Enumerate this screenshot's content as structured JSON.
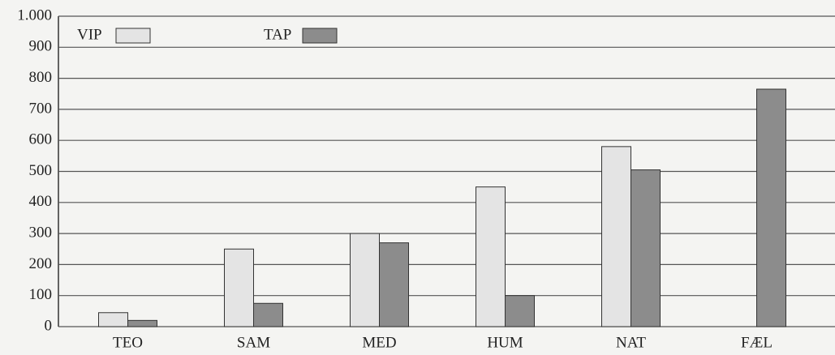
{
  "chart_data": {
    "type": "bar",
    "categories": [
      "TEO",
      "SAM",
      "MED",
      "HUM",
      "NAT",
      "FÆL"
    ],
    "series": [
      {
        "name": "VIP",
        "color": "#e4e4e4",
        "values": [
          45,
          250,
          300,
          450,
          580,
          null
        ]
      },
      {
        "name": "TAP",
        "color": "#8c8c8c",
        "values": [
          20,
          75,
          270,
          100,
          505,
          765
        ]
      }
    ],
    "ylim": [
      0,
      1000
    ],
    "yticks": [
      0,
      100,
      200,
      300,
      400,
      500,
      600,
      700,
      800,
      900,
      {
        "value": 1000,
        "label": "1.000"
      }
    ],
    "grid": true,
    "legend": "top-left"
  }
}
